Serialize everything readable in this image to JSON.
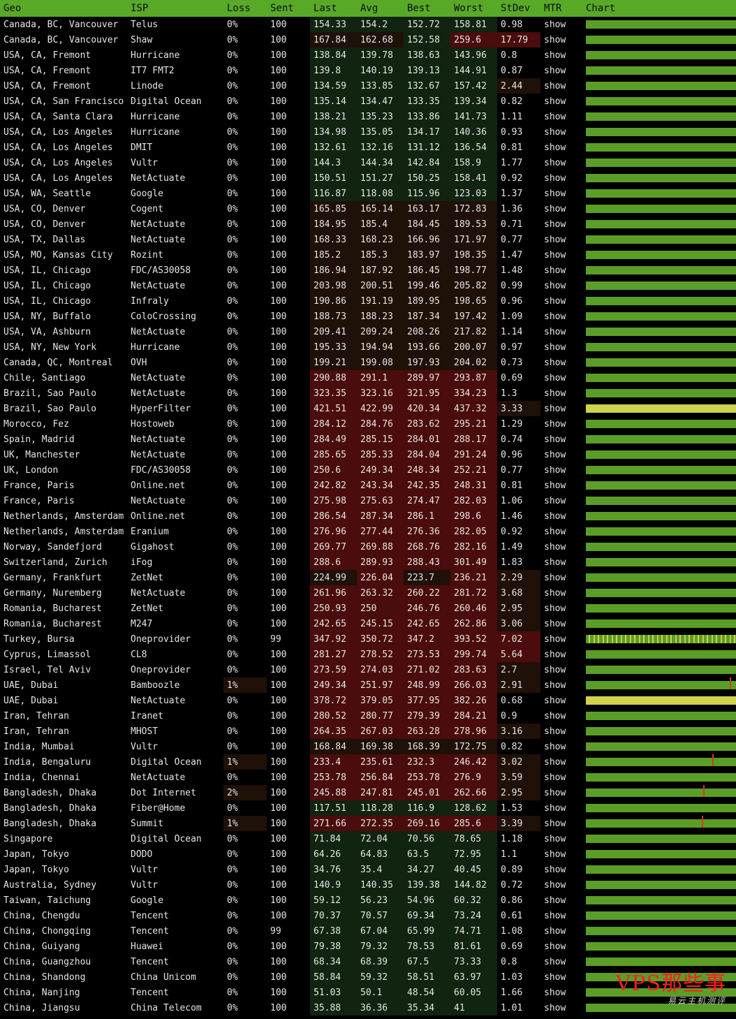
{
  "columns": [
    "Geo",
    "ISP",
    "Loss",
    "Sent",
    "Last",
    "Avg",
    "Best",
    "Worst",
    "StDev",
    "MTR",
    "Chart"
  ],
  "colors": {
    "header": "#59a928",
    "link": "#6fbf2a",
    "bar_green": "#5a9e27",
    "bar_yellow": "#cfd24c",
    "latency_low": "#102410",
    "latency_mid": "#1f1008",
    "latency_high": "#4a0c0c",
    "watermark": "#ff1e1e"
  },
  "rows": [
    {
      "geo": "Canada, BC, Vancouver",
      "isp": "Telus",
      "loss": "0%",
      "sent": "100",
      "last": "154.33",
      "avg": "154.2",
      "best": "152.72",
      "worst": "158.81",
      "stdev": "0.98",
      "mtr": "show"
    },
    {
      "geo": "Canada, BC, Vancouver",
      "isp": "Shaw",
      "loss": "0%",
      "sent": "100",
      "last": "167.84",
      "avg": "162.68",
      "best": "152.58",
      "worst": "259.6",
      "stdev": "17.79",
      "mtr": "show"
    },
    {
      "geo": "USA, CA, Fremont",
      "isp": "Hurricane",
      "loss": "0%",
      "sent": "100",
      "last": "138.84",
      "avg": "139.78",
      "best": "138.63",
      "worst": "143.96",
      "stdev": "0.8",
      "mtr": "show"
    },
    {
      "geo": "USA, CA, Fremont",
      "isp": "IT7 FMT2",
      "loss": "0%",
      "sent": "100",
      "last": "139.8",
      "avg": "140.19",
      "best": "139.13",
      "worst": "144.91",
      "stdev": "0.87",
      "mtr": "show"
    },
    {
      "geo": "USA, CA, Fremont",
      "isp": "Linode",
      "loss": "0%",
      "sent": "100",
      "last": "134.59",
      "avg": "133.85",
      "best": "132.67",
      "worst": "157.42",
      "stdev": "2.44",
      "mtr": "show"
    },
    {
      "geo": "USA, CA, San Francisco",
      "isp": "Digital Ocean",
      "loss": "0%",
      "sent": "100",
      "last": "135.14",
      "avg": "134.47",
      "best": "133.35",
      "worst": "139.34",
      "stdev": "0.82",
      "mtr": "show"
    },
    {
      "geo": "USA, CA, Santa Clara",
      "isp": "Hurricane",
      "loss": "0%",
      "sent": "100",
      "last": "138.21",
      "avg": "135.23",
      "best": "133.86",
      "worst": "141.73",
      "stdev": "1.11",
      "mtr": "show"
    },
    {
      "geo": "USA, CA, Los Angeles",
      "isp": "Hurricane",
      "loss": "0%",
      "sent": "100",
      "last": "134.98",
      "avg": "135.05",
      "best": "134.17",
      "worst": "140.36",
      "stdev": "0.93",
      "mtr": "show"
    },
    {
      "geo": "USA, CA, Los Angeles",
      "isp": "DMIT",
      "loss": "0%",
      "sent": "100",
      "last": "132.61",
      "avg": "132.16",
      "best": "131.12",
      "worst": "136.54",
      "stdev": "0.81",
      "mtr": "show"
    },
    {
      "geo": "USA, CA, Los Angeles",
      "isp": "Vultr",
      "loss": "0%",
      "sent": "100",
      "last": "144.3",
      "avg": "144.34",
      "best": "142.84",
      "worst": "158.9",
      "stdev": "1.77",
      "mtr": "show"
    },
    {
      "geo": "USA, CA, Los Angeles",
      "isp": "NetActuate",
      "loss": "0%",
      "sent": "100",
      "last": "150.51",
      "avg": "151.27",
      "best": "150.25",
      "worst": "158.41",
      "stdev": "0.92",
      "mtr": "show"
    },
    {
      "geo": "USA, WA, Seattle",
      "isp": "Google",
      "loss": "0%",
      "sent": "100",
      "last": "116.87",
      "avg": "118.08",
      "best": "115.96",
      "worst": "123.03",
      "stdev": "1.37",
      "mtr": "show"
    },
    {
      "geo": "USA, CO, Denver",
      "isp": "Cogent",
      "loss": "0%",
      "sent": "100",
      "last": "165.85",
      "avg": "165.14",
      "best": "163.17",
      "worst": "172.83",
      "stdev": "1.36",
      "mtr": "show"
    },
    {
      "geo": "USA, CO, Denver",
      "isp": "NetActuate",
      "loss": "0%",
      "sent": "100",
      "last": "184.95",
      "avg": "185.4",
      "best": "184.45",
      "worst": "189.53",
      "stdev": "0.71",
      "mtr": "show"
    },
    {
      "geo": "USA, TX, Dallas",
      "isp": "NetActuate",
      "loss": "0%",
      "sent": "100",
      "last": "168.33",
      "avg": "168.23",
      "best": "166.96",
      "worst": "171.97",
      "stdev": "0.77",
      "mtr": "show"
    },
    {
      "geo": "USA, MO, Kansas City",
      "isp": "Rozint",
      "loss": "0%",
      "sent": "100",
      "last": "185.2",
      "avg": "185.3",
      "best": "183.97",
      "worst": "198.35",
      "stdev": "1.47",
      "mtr": "show"
    },
    {
      "geo": "USA, IL, Chicago",
      "isp": "FDC/AS30058",
      "loss": "0%",
      "sent": "100",
      "last": "186.94",
      "avg": "187.92",
      "best": "186.45",
      "worst": "198.77",
      "stdev": "1.48",
      "mtr": "show"
    },
    {
      "geo": "USA, IL, Chicago",
      "isp": "NetActuate",
      "loss": "0%",
      "sent": "100",
      "last": "203.98",
      "avg": "200.51",
      "best": "199.46",
      "worst": "205.82",
      "stdev": "0.99",
      "mtr": "show"
    },
    {
      "geo": "USA, IL, Chicago",
      "isp": "Infraly",
      "loss": "0%",
      "sent": "100",
      "last": "190.86",
      "avg": "191.19",
      "best": "189.95",
      "worst": "198.65",
      "stdev": "0.96",
      "mtr": "show"
    },
    {
      "geo": "USA, NY, Buffalo",
      "isp": "ColoCrossing",
      "loss": "0%",
      "sent": "100",
      "last": "188.73",
      "avg": "188.23",
      "best": "187.34",
      "worst": "197.42",
      "stdev": "1.09",
      "mtr": "show"
    },
    {
      "geo": "USA, VA, Ashburn",
      "isp": "NetActuate",
      "loss": "0%",
      "sent": "100",
      "last": "209.41",
      "avg": "209.24",
      "best": "208.26",
      "worst": "217.82",
      "stdev": "1.14",
      "mtr": "show"
    },
    {
      "geo": "USA, NY, New York",
      "isp": "Hurricane",
      "loss": "0%",
      "sent": "100",
      "last": "195.33",
      "avg": "194.94",
      "best": "193.66",
      "worst": "200.07",
      "stdev": "0.97",
      "mtr": "show"
    },
    {
      "geo": "Canada, QC, Montreal",
      "isp": "OVH",
      "loss": "0%",
      "sent": "100",
      "last": "199.21",
      "avg": "199.08",
      "best": "197.93",
      "worst": "204.02",
      "stdev": "0.73",
      "mtr": "show"
    },
    {
      "geo": "Chile, Santiago",
      "isp": "NetActuate",
      "loss": "0%",
      "sent": "100",
      "last": "290.88",
      "avg": "291.1",
      "best": "289.97",
      "worst": "293.87",
      "stdev": "0.69",
      "mtr": "show"
    },
    {
      "geo": "Brazil, Sao Paulo",
      "isp": "NetActuate",
      "loss": "0%",
      "sent": "100",
      "last": "323.35",
      "avg": "323.16",
      "best": "321.95",
      "worst": "334.23",
      "stdev": "1.3",
      "mtr": "show"
    },
    {
      "geo": "Brazil, Sao Paulo",
      "isp": "HyperFilter",
      "loss": "0%",
      "sent": "100",
      "last": "421.51",
      "avg": "422.99",
      "best": "420.34",
      "worst": "437.32",
      "stdev": "3.33",
      "mtr": "show"
    },
    {
      "geo": "Morocco, Fez",
      "isp": "Hostoweb",
      "loss": "0%",
      "sent": "100",
      "last": "284.12",
      "avg": "284.76",
      "best": "283.62",
      "worst": "295.21",
      "stdev": "1.29",
      "mtr": "show"
    },
    {
      "geo": "Spain, Madrid",
      "isp": "NetActuate",
      "loss": "0%",
      "sent": "100",
      "last": "284.49",
      "avg": "285.15",
      "best": "284.01",
      "worst": "288.17",
      "stdev": "0.74",
      "mtr": "show"
    },
    {
      "geo": "UK, Manchester",
      "isp": "NetActuate",
      "loss": "0%",
      "sent": "100",
      "last": "285.65",
      "avg": "285.33",
      "best": "284.04",
      "worst": "291.24",
      "stdev": "0.96",
      "mtr": "show"
    },
    {
      "geo": "UK, London",
      "isp": "FDC/AS30058",
      "loss": "0%",
      "sent": "100",
      "last": "250.6",
      "avg": "249.34",
      "best": "248.34",
      "worst": "252.21",
      "stdev": "0.77",
      "mtr": "show"
    },
    {
      "geo": "France, Paris",
      "isp": "Online.net",
      "loss": "0%",
      "sent": "100",
      "last": "242.82",
      "avg": "243.34",
      "best": "242.35",
      "worst": "248.31",
      "stdev": "0.81",
      "mtr": "show"
    },
    {
      "geo": "France, Paris",
      "isp": "NetActuate",
      "loss": "0%",
      "sent": "100",
      "last": "275.98",
      "avg": "275.63",
      "best": "274.47",
      "worst": "282.03",
      "stdev": "1.06",
      "mtr": "show"
    },
    {
      "geo": "Netherlands, Amsterdam",
      "isp": "Online.net",
      "loss": "0%",
      "sent": "100",
      "last": "286.54",
      "avg": "287.34",
      "best": "286.1",
      "worst": "298.6",
      "stdev": "1.46",
      "mtr": "show"
    },
    {
      "geo": "Netherlands, Amsterdam",
      "isp": "Eranium",
      "loss": "0%",
      "sent": "100",
      "last": "276.96",
      "avg": "277.44",
      "best": "276.36",
      "worst": "282.05",
      "stdev": "0.92",
      "mtr": "show"
    },
    {
      "geo": "Norway, Sandefjord",
      "isp": "Gigahost",
      "loss": "0%",
      "sent": "100",
      "last": "269.77",
      "avg": "269.88",
      "best": "268.76",
      "worst": "282.16",
      "stdev": "1.49",
      "mtr": "show"
    },
    {
      "geo": "Switzerland, Zurich",
      "isp": "iFog",
      "loss": "0%",
      "sent": "100",
      "last": "288.6",
      "avg": "289.93",
      "best": "288.43",
      "worst": "301.49",
      "stdev": "1.83",
      "mtr": "show"
    },
    {
      "geo": "Germany, Frankfurt",
      "isp": "ZetNet",
      "loss": "0%",
      "sent": "100",
      "last": "224.99",
      "avg": "226.04",
      "best": "223.7",
      "worst": "236.21",
      "stdev": "2.29",
      "mtr": "show"
    },
    {
      "geo": "Germany, Nuremberg",
      "isp": "NetActuate",
      "loss": "0%",
      "sent": "100",
      "last": "261.96",
      "avg": "263.32",
      "best": "260.22",
      "worst": "281.72",
      "stdev": "3.68",
      "mtr": "show"
    },
    {
      "geo": "Romania, Bucharest",
      "isp": "ZetNet",
      "loss": "0%",
      "sent": "100",
      "last": "250.93",
      "avg": "250",
      "best": "246.76",
      "worst": "260.46",
      "stdev": "2.95",
      "mtr": "show"
    },
    {
      "geo": "Romania, Bucharest",
      "isp": "M247",
      "loss": "0%",
      "sent": "100",
      "last": "242.65",
      "avg": "245.15",
      "best": "242.65",
      "worst": "262.86",
      "stdev": "3.06",
      "mtr": "show"
    },
    {
      "geo": "Turkey, Bursa",
      "isp": "Oneprovider",
      "loss": "0%",
      "sent": "99",
      "last": "347.92",
      "avg": "350.72",
      "best": "347.2",
      "worst": "393.52",
      "stdev": "7.02",
      "mtr": "show"
    },
    {
      "geo": "Cyprus, Limassol",
      "isp": "CL8",
      "loss": "0%",
      "sent": "100",
      "last": "281.27",
      "avg": "278.52",
      "best": "273.53",
      "worst": "299.74",
      "stdev": "5.64",
      "mtr": "show"
    },
    {
      "geo": "Israel, Tel Aviv",
      "isp": "Oneprovider",
      "loss": "0%",
      "sent": "100",
      "last": "273.59",
      "avg": "274.03",
      "best": "271.02",
      "worst": "283.63",
      "stdev": "2.7",
      "mtr": "show"
    },
    {
      "geo": "UAE, Dubai",
      "isp": "Bamboozle",
      "loss": "1%",
      "sent": "100",
      "last": "249.34",
      "avg": "251.97",
      "best": "248.99",
      "worst": "266.03",
      "stdev": "2.91",
      "mtr": "show"
    },
    {
      "geo": "UAE, Dubai",
      "isp": "NetActuate",
      "loss": "0%",
      "sent": "100",
      "last": "378.72",
      "avg": "379.05",
      "best": "377.95",
      "worst": "382.26",
      "stdev": "0.68",
      "mtr": "show"
    },
    {
      "geo": "Iran, Tehran",
      "isp": "Iranet",
      "loss": "0%",
      "sent": "100",
      "last": "280.52",
      "avg": "280.77",
      "best": "279.39",
      "worst": "284.21",
      "stdev": "0.9",
      "mtr": "show"
    },
    {
      "geo": "Iran, Tehran",
      "isp": "MHOST",
      "loss": "0%",
      "sent": "100",
      "last": "264.35",
      "avg": "267.03",
      "best": "263.28",
      "worst": "278.96",
      "stdev": "3.16",
      "mtr": "show"
    },
    {
      "geo": "India, Mumbai",
      "isp": "Vultr",
      "loss": "0%",
      "sent": "100",
      "last": "168.84",
      "avg": "169.38",
      "best": "168.39",
      "worst": "172.75",
      "stdev": "0.82",
      "mtr": "show"
    },
    {
      "geo": "India, Bengaluru",
      "isp": "Digital Ocean",
      "loss": "1%",
      "sent": "100",
      "last": "233.4",
      "avg": "235.61",
      "best": "232.3",
      "worst": "246.42",
      "stdev": "3.02",
      "mtr": "show"
    },
    {
      "geo": "India, Chennai",
      "isp": "NetActuate",
      "loss": "0%",
      "sent": "100",
      "last": "253.78",
      "avg": "256.84",
      "best": "253.78",
      "worst": "276.9",
      "stdev": "3.59",
      "mtr": "show"
    },
    {
      "geo": "Bangladesh, Dhaka",
      "isp": "Dot Internet",
      "loss": "2%",
      "sent": "100",
      "last": "245.88",
      "avg": "247.81",
      "best": "245.01",
      "worst": "262.66",
      "stdev": "2.95",
      "mtr": "show"
    },
    {
      "geo": "Bangladesh, Dhaka",
      "isp": "Fiber@Home",
      "loss": "0%",
      "sent": "100",
      "last": "117.51",
      "avg": "118.28",
      "best": "116.9",
      "worst": "128.62",
      "stdev": "1.53",
      "mtr": "show"
    },
    {
      "geo": "Bangladesh, Dhaka",
      "isp": "Summit",
      "loss": "1%",
      "sent": "100",
      "last": "271.66",
      "avg": "272.35",
      "best": "269.16",
      "worst": "285.6",
      "stdev": "3.39",
      "mtr": "show"
    },
    {
      "geo": "Singapore",
      "isp": "Digital Ocean",
      "loss": "0%",
      "sent": "100",
      "last": "71.84",
      "avg": "72.04",
      "best": "70.56",
      "worst": "78.65",
      "stdev": "1.18",
      "mtr": "show"
    },
    {
      "geo": "Japan, Tokyo",
      "isp": "DODO",
      "loss": "0%",
      "sent": "100",
      "last": "64.26",
      "avg": "64.83",
      "best": "63.5",
      "worst": "72.95",
      "stdev": "1.1",
      "mtr": "show"
    },
    {
      "geo": "Japan, Tokyo",
      "isp": "Vultr",
      "loss": "0%",
      "sent": "100",
      "last": "34.76",
      "avg": "35.4",
      "best": "34.27",
      "worst": "40.45",
      "stdev": "0.89",
      "mtr": "show"
    },
    {
      "geo": "Australia, Sydney",
      "isp": "Vultr",
      "loss": "0%",
      "sent": "100",
      "last": "140.9",
      "avg": "140.35",
      "best": "139.38",
      "worst": "144.82",
      "stdev": "0.72",
      "mtr": "show"
    },
    {
      "geo": "Taiwan, Taichung",
      "isp": "Google",
      "loss": "0%",
      "sent": "100",
      "last": "59.12",
      "avg": "56.23",
      "best": "54.96",
      "worst": "60.32",
      "stdev": "0.86",
      "mtr": "show"
    },
    {
      "geo": "China, Chengdu",
      "isp": "Tencent",
      "loss": "0%",
      "sent": "100",
      "last": "70.37",
      "avg": "70.57",
      "best": "69.34",
      "worst": "73.24",
      "stdev": "0.61",
      "mtr": "show"
    },
    {
      "geo": "China, Chongqing",
      "isp": "Tencent",
      "loss": "0%",
      "sent": "99",
      "last": "67.38",
      "avg": "67.04",
      "best": "65.99",
      "worst": "74.71",
      "stdev": "1.08",
      "mtr": "show"
    },
    {
      "geo": "China, Guiyang",
      "isp": "Huawei",
      "loss": "0%",
      "sent": "100",
      "last": "79.38",
      "avg": "79.32",
      "best": "78.53",
      "worst": "81.61",
      "stdev": "0.69",
      "mtr": "show"
    },
    {
      "geo": "China, Guangzhou",
      "isp": "Tencent",
      "loss": "0%",
      "sent": "100",
      "last": "68.34",
      "avg": "68.39",
      "best": "67.5",
      "worst": "73.33",
      "stdev": "0.8",
      "mtr": "show"
    },
    {
      "geo": "China, Shandong",
      "isp": "China Unicom",
      "loss": "0%",
      "sent": "100",
      "last": "58.84",
      "avg": "59.32",
      "best": "58.51",
      "worst": "63.97",
      "stdev": "1.03",
      "mtr": "show"
    },
    {
      "geo": "China, Nanjing",
      "isp": "Tencent",
      "loss": "0%",
      "sent": "100",
      "last": "51.03",
      "avg": "50.1",
      "best": "48.54",
      "worst": "60.05",
      "stdev": "1.66",
      "mtr": "show"
    },
    {
      "geo": "China, Jiangsu",
      "isp": "China Telecom",
      "loss": "0%",
      "sent": "100",
      "last": "35.88",
      "avg": "36.36",
      "best": "35.34",
      "worst": "41",
      "stdev": "1.01",
      "mtr": "show"
    }
  ],
  "chart_styles": {
    "25": "yellow",
    "40": "mixed",
    "44": "yellow"
  },
  "chart_spikes": {
    "43": [
      {
        "pos": 0.96,
        "height": 0.9
      }
    ],
    "48": [
      {
        "pos": 0.84,
        "height": 1.0
      }
    ],
    "50": [
      {
        "pos": 0.78,
        "height": 1.0
      }
    ],
    "52": [
      {
        "pos": 0.77,
        "height": 0.9
      }
    ]
  },
  "watermark": {
    "main": "VPS那些事",
    "sub": "易云主机测评"
  }
}
